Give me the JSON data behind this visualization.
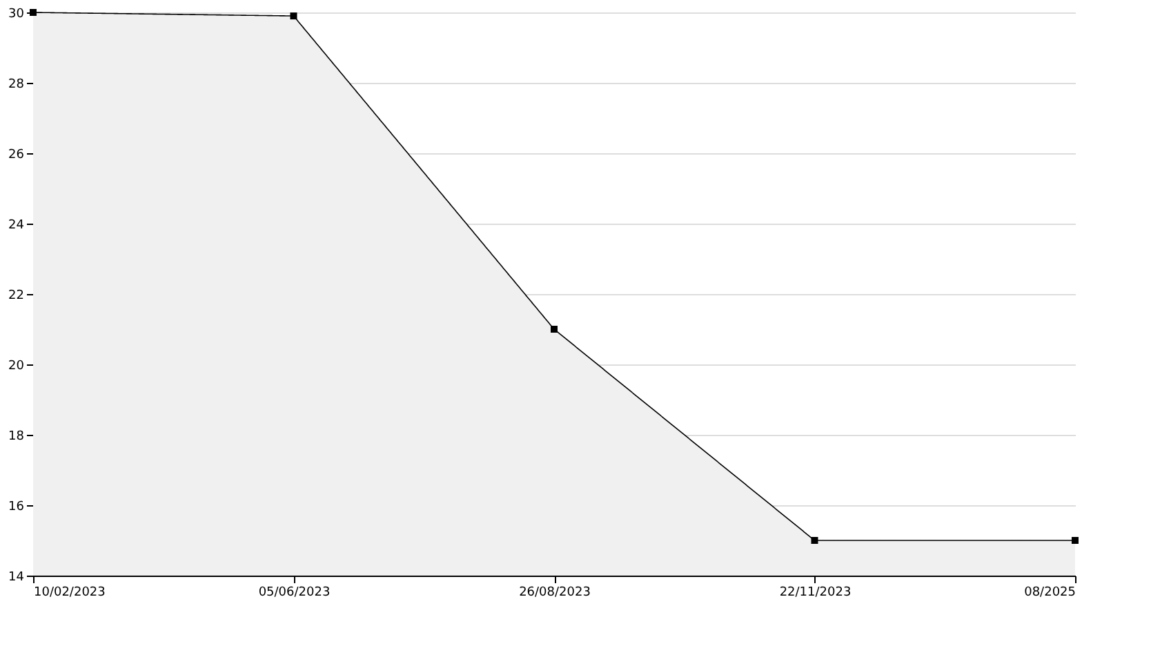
{
  "chart_data": {
    "type": "area",
    "categories": [
      "10/02/2023",
      "05/06/2023",
      "26/08/2023",
      "22/11/2023",
      "08/2025"
    ],
    "series": [
      {
        "color": "#f0f0f0",
        "values": [
          30,
          29.9,
          21,
          15,
          15
        ]
      }
    ],
    "ylim": [
      14,
      30
    ],
    "yticks": [
      14,
      16,
      18,
      20,
      22,
      24,
      26,
      28,
      30
    ],
    "grid": "y",
    "marker": "square",
    "line_style": "solid"
  }
}
